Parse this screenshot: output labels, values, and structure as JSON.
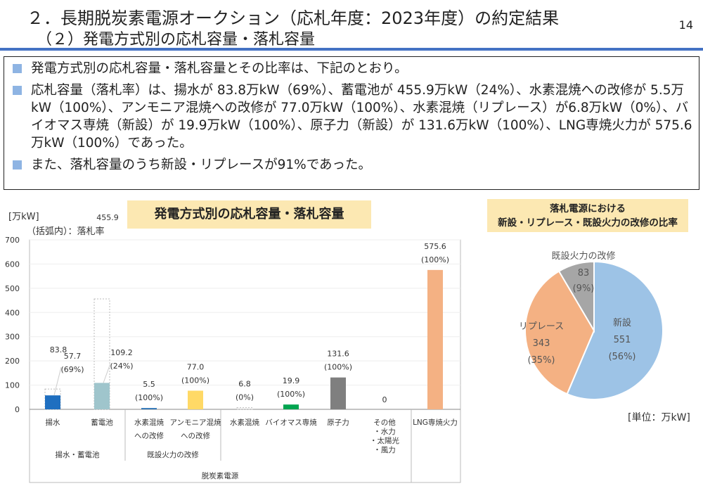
{
  "header": {
    "title": "２．長期脱炭素電源オークション（応札年度：2023年度）の約定結果",
    "subtitle": "（２）発電方式別の応札容量・落札容量",
    "page_number": "14"
  },
  "summary": {
    "bullets": [
      "発電方式別の応札容量・落札容量とその比率は、下記のとおり。",
      "応札容量（落札率）は、揚水が 83.8万kW（69%）、蓄電池が 455.9万kW（24%）、水素混焼への改修が 5.5万kW（100%）、アンモニア混焼への改修が 77.0万kW（100%）、水素混焼（リプレース）が6.8万kW（0%）、バイオマス専焼（新設）が 19.9万kW（100%）、原子力（新設）が 131.6万kW（100%）、LNG専焼火力が 575.6万kW（100%）であった。",
      "また、落札容量のうち新設・リプレースが91%であった。"
    ]
  },
  "chart_data": [
    {
      "type": "bar",
      "title": "発電方式別の応札容量・落札容量",
      "ylabel": "[万kW]",
      "note": "（括弧内）：落札率",
      "ylim": [
        0,
        700
      ],
      "yticks": [
        "0",
        "100",
        "200",
        "300",
        "400",
        "500",
        "600",
        "700"
      ],
      "categories": [
        {
          "label": "揚水",
          "label2": "",
          "applied": 83.8,
          "awarded": 57.7,
          "applied_label": "83.8",
          "awarded_label": "57.7",
          "rate": "(69%)",
          "color": "#1f6fc0"
        },
        {
          "label": "蓄電池",
          "label2": "",
          "applied": 455.9,
          "awarded": 109.2,
          "applied_label": "455.9",
          "awarded_label": "109.2",
          "rate": "(24%)",
          "color": "#9fc5cc"
        },
        {
          "label": "水素混焼",
          "label2": "への改修",
          "applied": 5.5,
          "awarded": 5.5,
          "applied_label": "5.5",
          "rate": "(100%)",
          "color": "#2e75b6"
        },
        {
          "label": "アンモニア混焼",
          "label2": "への改修",
          "applied": 77.0,
          "awarded": 77.0,
          "applied_label": "77.0",
          "rate": "(100%)",
          "color": "#ffd966"
        },
        {
          "label": "水素混焼",
          "label2": "",
          "applied": 6.8,
          "awarded": 0,
          "applied_label": "6.8",
          "rate": "(0%)",
          "color": "#ffffff"
        },
        {
          "label": "バイオマス専焼",
          "label2": "",
          "applied": 19.9,
          "awarded": 19.9,
          "applied_label": "19.9",
          "rate": "(100%)",
          "color": "#00a550"
        },
        {
          "label": "原子力",
          "label2": "",
          "applied": 131.6,
          "awarded": 131.6,
          "applied_label": "131.6",
          "rate": "(100%)",
          "color": "#7f7f7f"
        },
        {
          "label": "その他",
          "label2": "・水力",
          "label3": "・太陽光",
          "label4": "・風力",
          "applied": 0,
          "awarded": 0,
          "applied_label": "0",
          "color": "#ffffff"
        },
        {
          "label": "LNG専焼火力",
          "label2": "",
          "applied": 575.6,
          "awarded": 575.6,
          "applied_label": "575.6",
          "rate": "(100%)",
          "color": "#f4b183"
        }
      ],
      "groups": [
        "揚水・蓄電池",
        "既設火力の改修",
        "脱炭素電源"
      ]
    },
    {
      "type": "pie",
      "title_line1": "落札電源における",
      "title_line2": "新設・リプレース・既設火力の改修の比率",
      "unit": "[単位：万kW]",
      "slices": [
        {
          "label": "新設",
          "value": 551,
          "value_label": "551",
          "pct": "(56%)",
          "color": "#9dc3e6"
        },
        {
          "label": "リプレース",
          "value": 343,
          "value_label": "343",
          "pct": "(35%)",
          "color": "#f4b183"
        },
        {
          "label": "既設火力の改修",
          "value": 83,
          "value_label": "83",
          "pct": "(9%)",
          "color": "#a6a6a6"
        }
      ]
    }
  ]
}
